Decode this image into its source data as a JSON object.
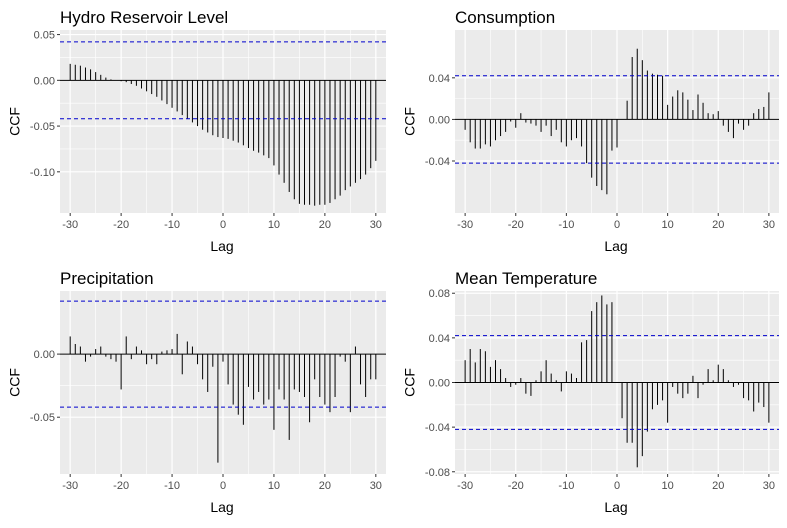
{
  "chart_data": [
    {
      "type": "bar",
      "title": "Hydro Reservoir Level",
      "xlabel": "Lag",
      "ylabel": "CCF",
      "xlim": [
        -32,
        32
      ],
      "ylim": [
        -0.145,
        0.055
      ],
      "xticks": [
        -30,
        -20,
        -10,
        0,
        10,
        20,
        30
      ],
      "yticks": [
        0.05,
        0.0,
        -0.05,
        -0.1
      ],
      "ytick_labels": [
        "0.05",
        "0.00",
        "-0.05",
        "-0.10"
      ],
      "conf_band": 0.042,
      "conf_color": "#0000cc",
      "grid": true,
      "lags": [
        -30,
        -29,
        -28,
        -27,
        -26,
        -25,
        -24,
        -23,
        -22,
        -21,
        -20,
        -19,
        -18,
        -17,
        -16,
        -15,
        -14,
        -13,
        -12,
        -11,
        -10,
        -9,
        -8,
        -7,
        -6,
        -5,
        -4,
        -3,
        -2,
        -1,
        0,
        1,
        2,
        3,
        4,
        5,
        6,
        7,
        8,
        9,
        10,
        11,
        12,
        13,
        14,
        15,
        16,
        17,
        18,
        19,
        20,
        21,
        22,
        23,
        24,
        25,
        26,
        27,
        28,
        29,
        30
      ],
      "values": [
        0.018,
        0.017,
        0.016,
        0.014,
        0.012,
        0.009,
        0.006,
        0.003,
        0.001,
        0.0,
        -0.001,
        -0.002,
        -0.004,
        -0.006,
        -0.009,
        -0.012,
        -0.015,
        -0.018,
        -0.022,
        -0.026,
        -0.03,
        -0.034,
        -0.038,
        -0.042,
        -0.046,
        -0.05,
        -0.054,
        -0.057,
        -0.06,
        -0.062,
        -0.063,
        -0.064,
        -0.066,
        -0.068,
        -0.071,
        -0.074,
        -0.077,
        -0.079,
        -0.082,
        -0.085,
        -0.093,
        -0.103,
        -0.112,
        -0.122,
        -0.13,
        -0.135,
        -0.136,
        -0.136,
        -0.137,
        -0.136,
        -0.136,
        -0.134,
        -0.13,
        -0.126,
        -0.12,
        -0.116,
        -0.112,
        -0.108,
        -0.103,
        -0.096,
        -0.088
      ]
    },
    {
      "type": "bar",
      "title": "Consumption",
      "xlabel": "Lag",
      "ylabel": "CCF",
      "xlim": [
        -32,
        32
      ],
      "ylim": [
        -0.09,
        0.086
      ],
      "xticks": [
        -30,
        -20,
        -10,
        0,
        10,
        20,
        30
      ],
      "yticks": [
        0.04,
        0.0,
        -0.04
      ],
      "ytick_labels": [
        "0.04",
        "0.00",
        "-0.04"
      ],
      "conf_band": 0.042,
      "conf_color": "#0000cc",
      "grid": true,
      "lags": [
        -30,
        -29,
        -28,
        -27,
        -26,
        -25,
        -24,
        -23,
        -22,
        -21,
        -20,
        -19,
        -18,
        -17,
        -16,
        -15,
        -14,
        -13,
        -12,
        -11,
        -10,
        -9,
        -8,
        -7,
        -6,
        -5,
        -4,
        -3,
        -2,
        -1,
        0,
        1,
        2,
        3,
        4,
        5,
        6,
        7,
        8,
        9,
        10,
        11,
        12,
        13,
        14,
        15,
        16,
        17,
        18,
        19,
        20,
        21,
        22,
        23,
        24,
        25,
        26,
        27,
        28,
        29,
        30
      ],
      "values": [
        -0.01,
        -0.022,
        -0.028,
        -0.028,
        -0.024,
        -0.026,
        -0.02,
        -0.016,
        -0.012,
        -0.002,
        -0.008,
        0.006,
        -0.003,
        -0.004,
        -0.006,
        -0.012,
        -0.006,
        -0.016,
        -0.01,
        -0.022,
        -0.026,
        -0.02,
        -0.018,
        -0.026,
        -0.042,
        -0.056,
        -0.064,
        -0.068,
        -0.072,
        -0.03,
        -0.027,
        0.0,
        0.018,
        0.06,
        0.068,
        0.057,
        0.047,
        0.044,
        0.043,
        0.042,
        0.014,
        0.022,
        0.028,
        0.026,
        0.019,
        0.009,
        0.024,
        0.016,
        0.006,
        0.005,
        0.008,
        -0.006,
        -0.012,
        -0.018,
        -0.004,
        -0.01,
        -0.006,
        0.006,
        0.01,
        0.012,
        0.026
      ]
    },
    {
      "type": "bar",
      "title": "Precipitation",
      "xlabel": "Lag",
      "ylabel": "CCF",
      "xlim": [
        -32,
        32
      ],
      "ylim": [
        -0.095,
        0.05
      ],
      "xticks": [
        -30,
        -20,
        -10,
        0,
        10,
        20,
        30
      ],
      "yticks": [
        0.0,
        -0.05
      ],
      "ytick_labels": [
        "0.00",
        "-0.05"
      ],
      "conf_band": 0.042,
      "conf_color": "#0000cc",
      "grid": true,
      "lags": [
        -30,
        -29,
        -28,
        -27,
        -26,
        -25,
        -24,
        -23,
        -22,
        -21,
        -20,
        -19,
        -18,
        -17,
        -16,
        -15,
        -14,
        -13,
        -12,
        -11,
        -10,
        -9,
        -8,
        -7,
        -6,
        -5,
        -4,
        -3,
        -2,
        -1,
        0,
        1,
        2,
        3,
        4,
        5,
        6,
        7,
        8,
        9,
        10,
        11,
        12,
        13,
        14,
        15,
        16,
        17,
        18,
        19,
        20,
        21,
        22,
        23,
        24,
        25,
        26,
        27,
        28,
        29,
        30
      ],
      "values": [
        0.014,
        0.008,
        0.006,
        -0.006,
        -0.002,
        0.004,
        0.006,
        -0.002,
        -0.004,
        -0.006,
        -0.028,
        0.014,
        -0.004,
        0.006,
        0.003,
        -0.008,
        -0.004,
        -0.008,
        0.002,
        0.003,
        0.004,
        0.016,
        -0.016,
        0.01,
        0.006,
        -0.008,
        -0.02,
        -0.03,
        -0.01,
        -0.086,
        -0.006,
        -0.024,
        -0.04,
        -0.048,
        -0.056,
        -0.026,
        -0.036,
        -0.03,
        -0.04,
        -0.036,
        -0.06,
        -0.028,
        -0.036,
        -0.068,
        -0.028,
        -0.03,
        -0.034,
        -0.054,
        -0.02,
        -0.034,
        -0.04,
        -0.046,
        -0.034,
        -0.002,
        -0.006,
        -0.046,
        0.006,
        -0.024,
        -0.034,
        -0.02,
        -0.02
      ]
    },
    {
      "type": "bar",
      "title": "Mean Temperature",
      "xlabel": "Lag",
      "ylabel": "CCF",
      "xlim": [
        -32,
        32
      ],
      "ylim": [
        -0.082,
        0.082
      ],
      "xticks": [
        -30,
        -20,
        -10,
        0,
        10,
        20,
        30
      ],
      "yticks": [
        0.08,
        0.04,
        0.0,
        -0.04,
        -0.08
      ],
      "ytick_labels": [
        "0.08",
        "0.04",
        "0.00",
        "-0.04",
        "-0.08"
      ],
      "conf_band": 0.042,
      "conf_color": "#0000cc",
      "grid": true,
      "lags": [
        -30,
        -29,
        -28,
        -27,
        -26,
        -25,
        -24,
        -23,
        -22,
        -21,
        -20,
        -19,
        -18,
        -17,
        -16,
        -15,
        -14,
        -13,
        -12,
        -11,
        -10,
        -9,
        -8,
        -7,
        -6,
        -5,
        -4,
        -3,
        -2,
        -1,
        0,
        1,
        2,
        3,
        4,
        5,
        6,
        7,
        8,
        9,
        10,
        11,
        12,
        13,
        14,
        15,
        16,
        17,
        18,
        19,
        20,
        21,
        22,
        23,
        24,
        25,
        26,
        27,
        28,
        29,
        30
      ],
      "values": [
        0.02,
        0.03,
        0.018,
        0.03,
        0.028,
        0.014,
        0.02,
        0.012,
        0.004,
        -0.004,
        -0.002,
        0.004,
        -0.01,
        -0.012,
        0.002,
        0.01,
        0.02,
        0.008,
        0.002,
        -0.008,
        0.01,
        0.008,
        0.004,
        0.036,
        0.038,
        0.064,
        0.072,
        0.078,
        0.07,
        0.072,
        0.0,
        -0.032,
        -0.054,
        -0.054,
        -0.076,
        -0.066,
        -0.044,
        -0.024,
        -0.02,
        -0.016,
        -0.036,
        -0.004,
        -0.01,
        -0.014,
        -0.01,
        0.006,
        -0.014,
        -0.002,
        0.012,
        0.002,
        0.016,
        0.012,
        0.002,
        -0.004,
        -0.002,
        -0.014,
        -0.016,
        -0.026,
        -0.018,
        -0.022,
        -0.036
      ]
    }
  ]
}
